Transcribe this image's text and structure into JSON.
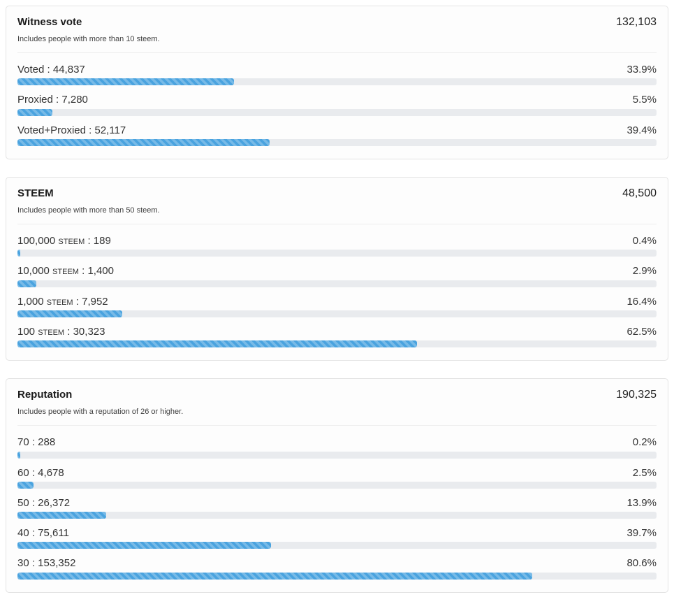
{
  "theme": {
    "accent": "#4AA3DF",
    "track": "#E9EBEE",
    "card_border": "#E3E3E3",
    "card_background": "#FDFDFD"
  },
  "panels": [
    {
      "title": "Witness vote",
      "total": "132,103",
      "subtitle": "Includes people with more than 10 steem.",
      "rows": [
        {
          "label": "Voted : 44,837",
          "percent": "33.9%",
          "percent_value": 33.9
        },
        {
          "label": "Proxied : 7,280",
          "percent": "5.5%",
          "percent_value": 5.5
        },
        {
          "label": "Voted+Proxied : 52,117",
          "percent": "39.4%",
          "percent_value": 39.4
        }
      ]
    },
    {
      "title": "STEEM",
      "total": "48,500",
      "subtitle": "Includes people with more than 50 steem.",
      "rows": [
        {
          "label": "100,000 steem : 189",
          "percent": "0.4%",
          "percent_value": 0.4
        },
        {
          "label": "10,000 steem : 1,400",
          "percent": "2.9%",
          "percent_value": 2.9
        },
        {
          "label": "1,000 steem : 7,952",
          "percent": "16.4%",
          "percent_value": 16.4
        },
        {
          "label": "100 steem : 30,323",
          "percent": "62.5%",
          "percent_value": 62.5
        }
      ]
    },
    {
      "title": "Reputation",
      "total": "190,325",
      "subtitle": "Includes people with a reputation of 26 or higher.",
      "rows": [
        {
          "label": "70 : 288",
          "percent": "0.2%",
          "percent_value": 0.2
        },
        {
          "label": "60 : 4,678",
          "percent": "2.5%",
          "percent_value": 2.5
        },
        {
          "label": "50 : 26,372",
          "percent": "13.9%",
          "percent_value": 13.9
        },
        {
          "label": "40 : 75,611",
          "percent": "39.7%",
          "percent_value": 39.7
        },
        {
          "label": "30 : 153,352",
          "percent": "80.6%",
          "percent_value": 80.6
        }
      ]
    }
  ],
  "chart_data": [
    {
      "type": "bar",
      "orientation": "horizontal",
      "title": "Witness vote",
      "subtitle": "Includes people with more than 10 steem.",
      "total": 132103,
      "categories": [
        "Voted",
        "Proxied",
        "Voted+Proxied"
      ],
      "values": [
        44837,
        7280,
        52117
      ],
      "percent": [
        33.9,
        5.5,
        39.4
      ],
      "xlim": [
        0,
        100
      ],
      "grid": false,
      "legend": false
    },
    {
      "type": "bar",
      "orientation": "horizontal",
      "title": "STEEM",
      "subtitle": "Includes people with more than 50 steem.",
      "total": 48500,
      "categories": [
        "100,000 STEEM",
        "10,000 STEEM",
        "1,000 STEEM",
        "100 STEEM"
      ],
      "values": [
        189,
        1400,
        7952,
        30323
      ],
      "percent": [
        0.4,
        2.9,
        16.4,
        62.5
      ],
      "xlim": [
        0,
        100
      ],
      "grid": false,
      "legend": false
    },
    {
      "type": "bar",
      "orientation": "horizontal",
      "title": "Reputation",
      "subtitle": "Includes people with a reputation of 26 or higher.",
      "total": 190325,
      "categories": [
        "70",
        "60",
        "50",
        "40",
        "30"
      ],
      "values": [
        288,
        4678,
        26372,
        75611,
        153352
      ],
      "percent": [
        0.2,
        2.5,
        13.9,
        39.7,
        80.6
      ],
      "xlim": [
        0,
        100
      ],
      "grid": false,
      "legend": false
    }
  ]
}
